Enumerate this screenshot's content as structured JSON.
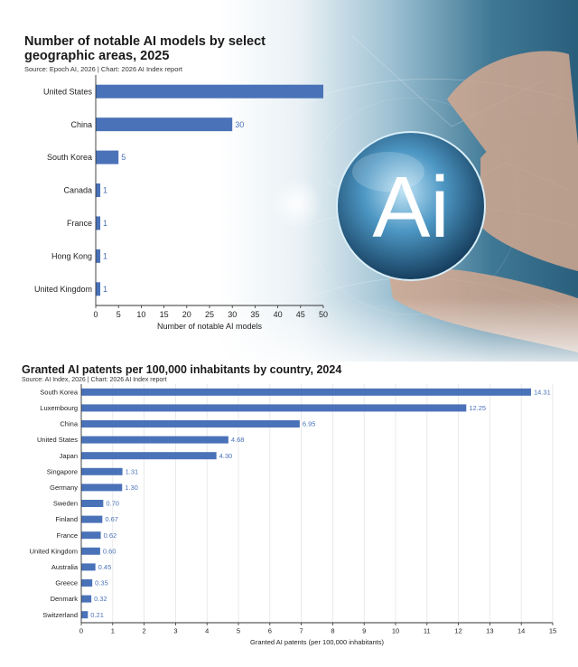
{
  "chart_data": [
    {
      "type": "bar",
      "orientation": "horizontal",
      "title": "Number of notable AI models by select geographic areas, 2025",
      "source": "Source: Epoch AI, 2026 | Chart: 2026 AI Index report",
      "xlabel": "Number of notable AI models",
      "categories": [
        "United States",
        "China",
        "South Korea",
        "Canada",
        "France",
        "Hong Kong",
        "United Kingdom"
      ],
      "values": [
        50,
        30,
        5,
        1,
        1,
        1,
        1
      ],
      "value_labels": [
        "",
        "30",
        "5",
        "1",
        "1",
        "1",
        "1"
      ],
      "xlim": [
        0,
        50
      ],
      "xticks": [
        0,
        5,
        10,
        15,
        20,
        25,
        30,
        35,
        40,
        45,
        50
      ],
      "grid": false,
      "bar_color": "#4a72b8"
    },
    {
      "type": "bar",
      "orientation": "horizontal",
      "title": "Granted AI patents per 100,000 inhabitants by country, 2024",
      "source": "Source: AI Index, 2026 | Chart: 2026 AI Index report",
      "xlabel": "Granted AI patents (per 100,000 inhabitants)",
      "categories": [
        "South Korea",
        "Luxembourg",
        "China",
        "United States",
        "Japan",
        "Singapore",
        "Germany",
        "Sweden",
        "Finland",
        "France",
        "United Kingdom",
        "Australia",
        "Greece",
        "Denmark",
        "Switzerland"
      ],
      "values": [
        14.31,
        12.25,
        6.95,
        4.68,
        4.3,
        1.31,
        1.3,
        0.7,
        0.67,
        0.62,
        0.6,
        0.45,
        0.35,
        0.32,
        0.21
      ],
      "value_labels": [
        "14.31",
        "12.25",
        "6.95",
        "4.68",
        "4.30",
        "1.31",
        "1.30",
        "0.70",
        "0.67",
        "0.62",
        "0.60",
        "0.45",
        "0.35",
        "0.32",
        "0.21"
      ],
      "xlim": [
        0,
        15
      ],
      "xticks": [
        0,
        1,
        2,
        3,
        4,
        5,
        6,
        7,
        8,
        9,
        10,
        11,
        12,
        13,
        14,
        15
      ],
      "grid": true,
      "bar_color": "#4a72b8"
    }
  ],
  "hero": {
    "logo_text": "Ai",
    "sphere_color": "#2f78a8",
    "background_color": "#2a5f7c"
  }
}
